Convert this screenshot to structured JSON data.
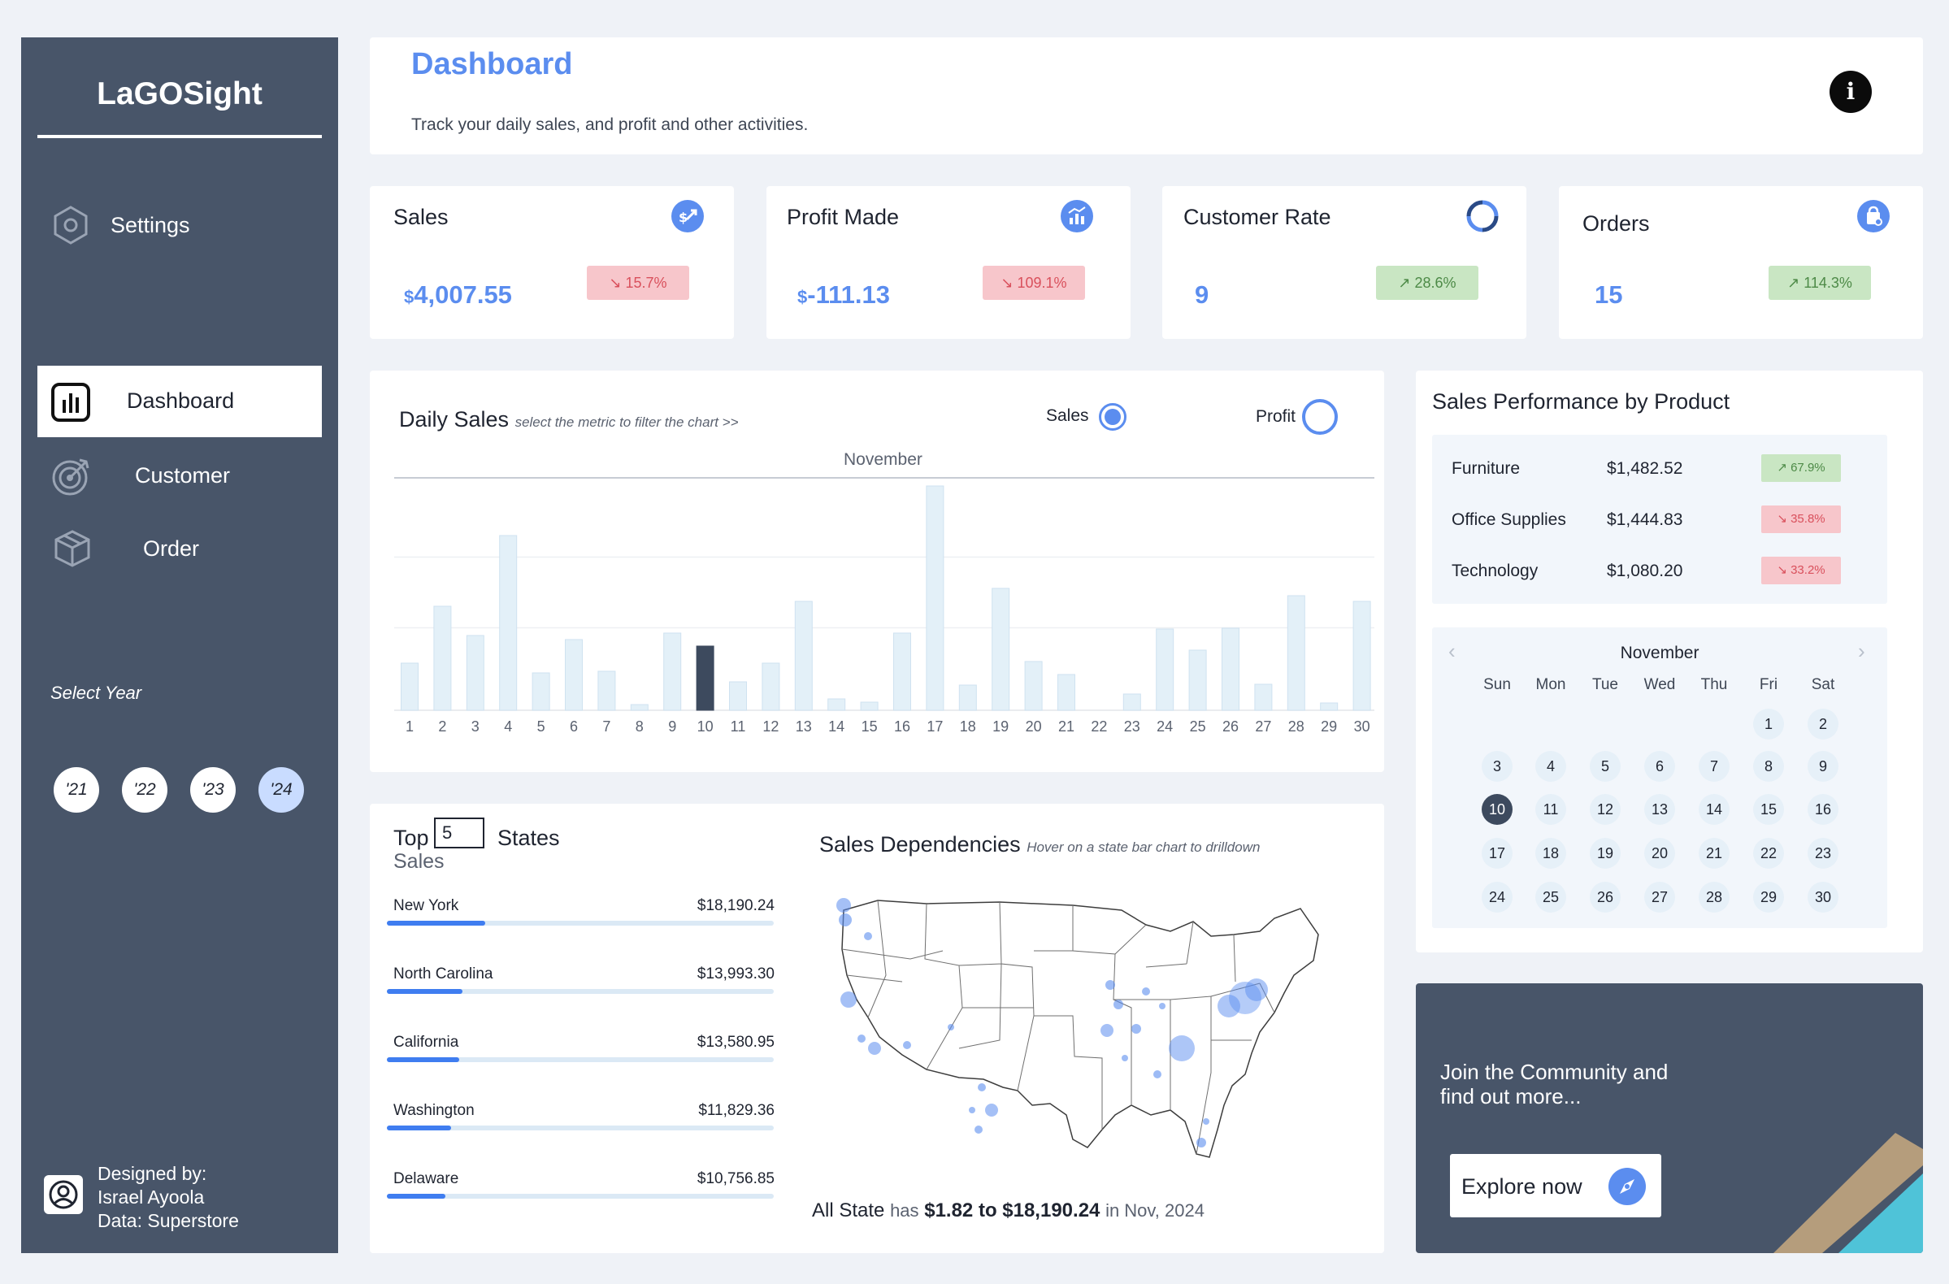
{
  "sidebar": {
    "brand": "LaGOSight",
    "settings_label": "Settings",
    "nav": [
      {
        "label": "Dashboard",
        "active": true
      },
      {
        "label": "Customer",
        "active": false
      },
      {
        "label": "Order",
        "active": false
      }
    ],
    "select_year_label": "Select Year",
    "years": [
      "'21",
      "'22",
      "'23",
      "'24"
    ],
    "selected_year": "'24",
    "designer": {
      "line1": "Designed by:",
      "line2": "Israel Ayoola",
      "line3": "Data: Superstore"
    }
  },
  "header": {
    "title": "Dashboard",
    "subtitle": "Track your daily sales, and profit and other activities.",
    "info_icon": "i"
  },
  "kpis": [
    {
      "title": "Sales",
      "value": "4,007.55",
      "currency": "$",
      "change": "15.7%",
      "direction": "down",
      "icon": "sales-icon"
    },
    {
      "title": "Profit Made",
      "value": "-111.13",
      "currency": "$",
      "change": "109.1%",
      "direction": "down",
      "icon": "profit-chart-icon"
    },
    {
      "title": "Customer Rate",
      "value": "9",
      "currency": "",
      "change": "28.6%",
      "direction": "up",
      "icon": "refresh-cycle-icon"
    },
    {
      "title": "Orders",
      "value": "15",
      "currency": "",
      "change": "114.3%",
      "direction": "up",
      "icon": "shopping-bag-icon"
    }
  ],
  "daily_sales": {
    "title": "Daily Sales",
    "hint": "select the metric to filter the chart >>",
    "metric_sales": "Sales",
    "metric_profit": "Profit",
    "selected_metric": "Sales",
    "month": "November"
  },
  "chart_data": {
    "type": "bar",
    "title": "Daily Sales",
    "categories": [
      "1",
      "2",
      "3",
      "4",
      "5",
      "6",
      "7",
      "8",
      "9",
      "10",
      "11",
      "12",
      "13",
      "14",
      "15",
      "16",
      "17",
      "18",
      "19",
      "20",
      "21",
      "22",
      "23",
      "24",
      "25",
      "26",
      "27",
      "28",
      "29",
      "30"
    ],
    "values": [
      58,
      128,
      92,
      215,
      46,
      87,
      48,
      7,
      95,
      79,
      35,
      58,
      134,
      14,
      10,
      95,
      276,
      31,
      150,
      60,
      44,
      0,
      20,
      100,
      74,
      101,
      32,
      141,
      9,
      134
    ],
    "highlight_category": "10",
    "ylim": [
      0,
      290
    ],
    "grid": true,
    "xlabel": "",
    "ylabel": ""
  },
  "product_perf": {
    "title": "Sales Performance by Product",
    "rows": [
      {
        "name": "Furniture",
        "value": "$1,482.52",
        "change": "67.9%",
        "direction": "up"
      },
      {
        "name": "Office Supplies",
        "value": "$1,444.83",
        "change": "35.8%",
        "direction": "down"
      },
      {
        "name": "Technology",
        "value": "$1,080.20",
        "change": "33.2%",
        "direction": "down"
      }
    ]
  },
  "calendar": {
    "month": "November",
    "day_names": [
      "Sun",
      "Mon",
      "Tue",
      "Wed",
      "Thu",
      "Fri",
      "Sat"
    ],
    "first_weekday": 5,
    "days_in_month": 30,
    "selected_day": 10
  },
  "top_states": {
    "label_top": "Top",
    "top_n": "5",
    "label_states": "States",
    "label_sales": "Sales",
    "rows": [
      {
        "name": "New York",
        "value": "$18,190.24",
        "share": 0.255
      },
      {
        "name": "North Carolina",
        "value": "$13,993.30",
        "share": 0.195
      },
      {
        "name": "California",
        "value": "$13,580.95",
        "share": 0.186
      },
      {
        "name": "Washington",
        "value": "$11,829.36",
        "share": 0.165
      },
      {
        "name": "Delaware",
        "value": "$10,756.85",
        "share": 0.151
      }
    ]
  },
  "dependencies": {
    "title": "Sales Dependencies",
    "hint": "Hover on a state bar chart to drilldown",
    "summary_prefix": "All State",
    "summary_has": "has",
    "summary_range": "$1.82 to $18,190.24",
    "summary_suffix": "in Nov, 2024"
  },
  "community": {
    "line1": "Join the Community and",
    "line2": "find out more...",
    "button": "Explore now"
  },
  "colors": {
    "sidebar": "#485569",
    "accent": "#5b8def",
    "bar": "#e3f0f8",
    "bar_highlight": "#3d4a5e",
    "down_bg": "#f7c6cb",
    "up_bg": "#c9e6c3"
  }
}
